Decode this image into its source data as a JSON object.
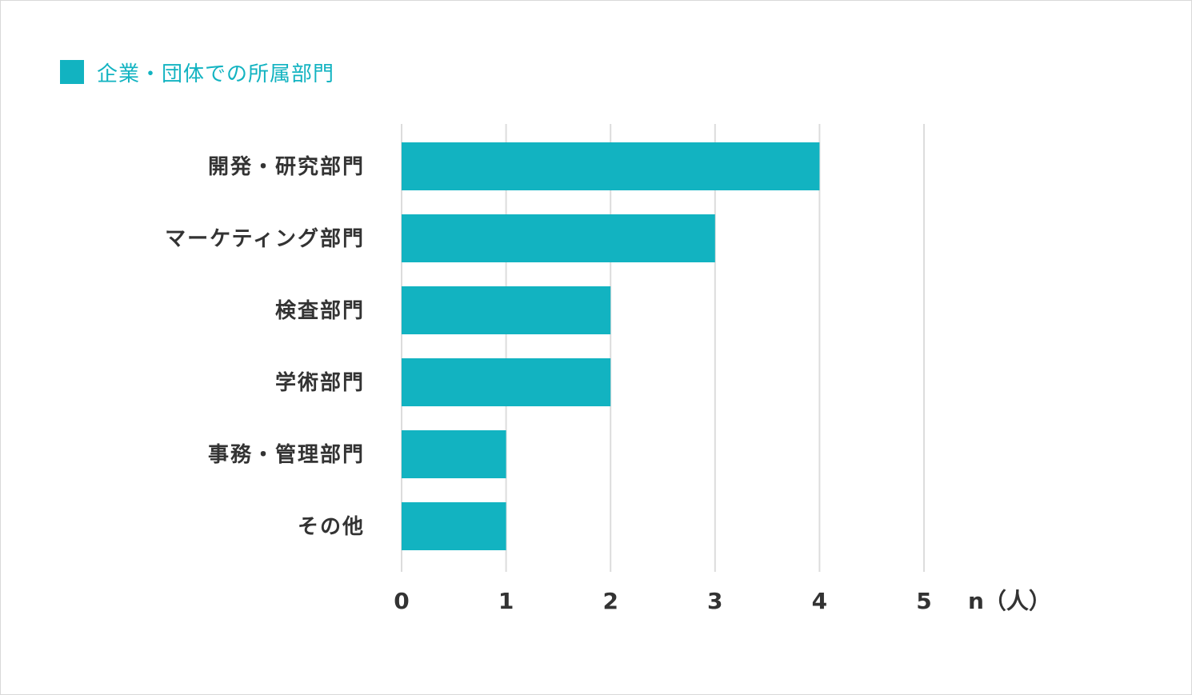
{
  "colors": {
    "bar": "#12b3c1",
    "grid": "#dcdcdc",
    "text": "#333333",
    "legend_text": "#12b3c1"
  },
  "chart_data": {
    "type": "bar",
    "orientation": "horizontal",
    "categories": [
      "開発・研究部門",
      "マーケティング部門",
      "検査部門",
      "学術部門",
      "事務・管理部門",
      "その他"
    ],
    "series": [
      {
        "name": "企業・団体での所属部門",
        "values": [
          4,
          3,
          2,
          2,
          1,
          1
        ]
      }
    ],
    "x_ticks": [
      "0",
      "1",
      "2",
      "3",
      "4",
      "5"
    ],
    "xlim": [
      0,
      5
    ],
    "xlabel": "n（人）",
    "ylabel": "",
    "grid": "vertical",
    "legend": "top-left"
  }
}
